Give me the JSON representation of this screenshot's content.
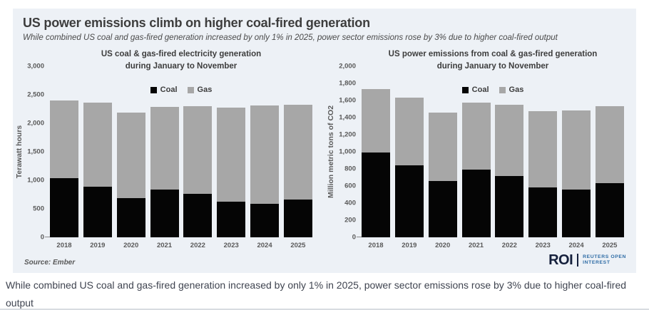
{
  "header": {
    "title": "US power emissions climb on higher coal-fired generation",
    "subtitle": "While combined US coal and gas-fired generation increased by only 1% in 2025, power sector emissions rose by 3% due to higher coal-fired output"
  },
  "footer": {
    "source": "Source:  Ember",
    "logo_main": "ROI",
    "logo_line1": "REUTERS OPEN",
    "logo_line2": "INTEREST"
  },
  "caption": "While combined US coal and gas-fired generation increased by only 1% in 2025, power sector emissions rose by 3% due to higher coal-fired output",
  "colors": {
    "coal": "#050505",
    "gas": "#a7a7a7",
    "card_background": "#edf1f6",
    "roi_navy": "#15203c",
    "roi_blue": "#2e6ca5"
  },
  "chart_data": [
    {
      "type": "bar",
      "stacked": true,
      "title": "US coal & gas-fired electricity generation during January to November",
      "title_lines": [
        "US coal & gas-fired electricity generation",
        "during January to November"
      ],
      "ylabel": "Terawatt hours",
      "xlabel": "",
      "categories": [
        "2018",
        "2019",
        "2020",
        "2021",
        "2022",
        "2023",
        "2024",
        "2025"
      ],
      "series": [
        {
          "name": "Coal",
          "color": "#050505",
          "values": [
            1040,
            890,
            690,
            840,
            760,
            620,
            585,
            660
          ]
        },
        {
          "name": "Gas",
          "color": "#a7a7a7",
          "values": [
            1360,
            1470,
            1500,
            1450,
            1545,
            1655,
            1730,
            1660
          ]
        }
      ],
      "totals": [
        2400,
        2360,
        2190,
        2290,
        2305,
        2275,
        2315,
        2320
      ],
      "ylim": [
        0,
        3000
      ],
      "ytick_step": 500,
      "grid": false,
      "legend_position": "top-center"
    },
    {
      "type": "bar",
      "stacked": true,
      "title": "US power emissions from coal & gas-fired generation during January to November",
      "title_lines": [
        "US power emissions from coal & gas-fired generation",
        "during January to November"
      ],
      "ylabel": "Million metric tons of CO2",
      "xlabel": "",
      "categories": [
        "2018",
        "2019",
        "2020",
        "2021",
        "2022",
        "2023",
        "2024",
        "2025"
      ],
      "series": [
        {
          "name": "Coal",
          "color": "#050505",
          "values": [
            990,
            845,
            660,
            795,
            715,
            585,
            560,
            635
          ]
        },
        {
          "name": "Gas",
          "color": "#a7a7a7",
          "values": [
            740,
            785,
            800,
            780,
            835,
            890,
            920,
            895
          ]
        }
      ],
      "totals": [
        1730,
        1630,
        1460,
        1575,
        1550,
        1475,
        1480,
        1530
      ],
      "ylim": [
        0,
        2000
      ],
      "ytick_step": 200,
      "grid": false,
      "legend_position": "top-center"
    }
  ]
}
